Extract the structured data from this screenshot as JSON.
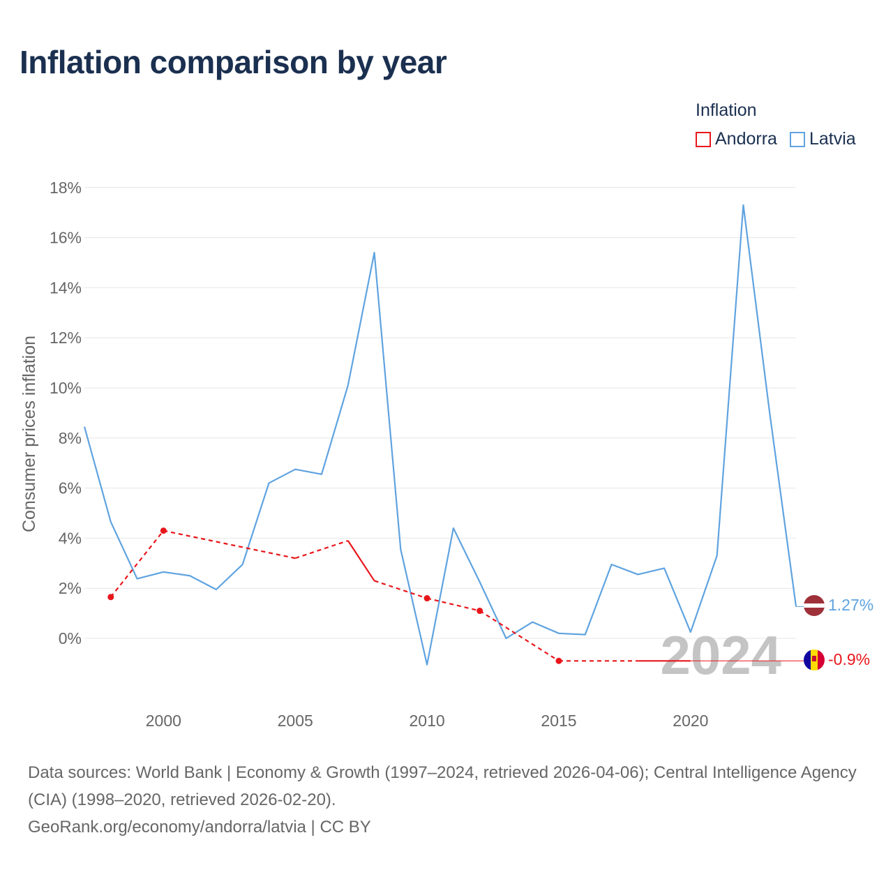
{
  "title": "Inflation comparison by year",
  "legend": {
    "title": "Inflation",
    "items": [
      {
        "label": "Andorra",
        "color": "#e8161b"
      },
      {
        "label": "Latvia",
        "color": "#5fa3e0"
      }
    ]
  },
  "year_watermark": "2024",
  "end_labels": {
    "latvia": "1.27%",
    "andorra": "-0.9%"
  },
  "sources": {
    "line1": "Data sources: World Bank | Economy & Growth (1997–2024, retrieved 2026-04-06); Central Intelligence Agency (CIA) (1998–2020, retrieved 2026-02-20).",
    "line2": "GeoRank.org/economy/andorra/latvia | CC BY"
  },
  "chart_data": {
    "type": "line",
    "title": "Inflation comparison by year",
    "ylabel": "Consumer prices inflation",
    "xlabel": "",
    "xlim": [
      1997,
      2024
    ],
    "ylim": [
      -2.5,
      18
    ],
    "x_ticks": [
      2000,
      2005,
      2010,
      2015,
      2020
    ],
    "y_ticks": [
      0,
      2,
      4,
      6,
      8,
      10,
      12,
      14,
      16,
      18
    ],
    "y_tick_labels": [
      "0%",
      "2%",
      "4%",
      "6%",
      "8%",
      "10%",
      "12%",
      "14%",
      "16%",
      "18%"
    ],
    "series": [
      {
        "name": "Latvia",
        "color": "#5fa3e0",
        "x": [
          1997,
          1998,
          1999,
          2000,
          2001,
          2002,
          2003,
          2004,
          2005,
          2006,
          2007,
          2008,
          2009,
          2010,
          2011,
          2012,
          2013,
          2014,
          2015,
          2016,
          2017,
          2018,
          2019,
          2020,
          2021,
          2022,
          2023,
          2024
        ],
        "values": [
          8.45,
          4.65,
          2.38,
          2.65,
          2.5,
          1.95,
          2.95,
          6.2,
          6.75,
          6.55,
          10.1,
          15.4,
          3.55,
          -1.05,
          4.4,
          2.25,
          0.0,
          0.65,
          0.2,
          0.15,
          2.95,
          2.55,
          2.8,
          0.25,
          3.3,
          17.3,
          9.0,
          1.27
        ]
      },
      {
        "name": "Andorra",
        "color": "#e8161b",
        "x": [
          1998,
          2000,
          2005,
          2007,
          2008,
          2010,
          2012,
          2015,
          2018,
          2020
        ],
        "values": [
          1.65,
          4.3,
          3.2,
          3.9,
          2.3,
          1.6,
          1.1,
          -0.9,
          -0.9,
          -0.9
        ],
        "end_value": -0.9
      }
    ]
  }
}
